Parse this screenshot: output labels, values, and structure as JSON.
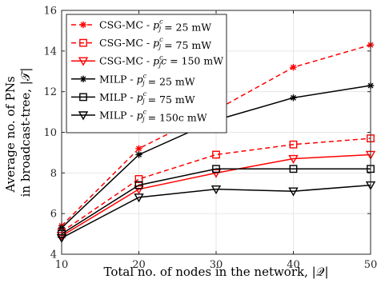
{
  "chart_data": {
    "type": "line",
    "title": "",
    "xlabel": "Total no. of nodes in the network, |𝒬|",
    "ylabel": "Average no. of PNs in broadcast-tree, |𝒯|",
    "ylabel_lines": [
      "Average no. of PNs",
      "in broadcast-tree, |𝒯|"
    ],
    "xlim": [
      10,
      50
    ],
    "ylim": [
      4,
      16
    ],
    "x_ticks": [
      10,
      20,
      30,
      40,
      50
    ],
    "y_ticks": [
      4,
      6,
      8,
      10,
      12,
      14,
      16
    ],
    "grid": true,
    "legend_position": "top-left",
    "x": [
      10,
      20,
      30,
      40,
      50
    ],
    "series": [
      {
        "name": "CSG-MC - p_j^c = 25 mW",
        "label_main": "CSG-MC - ",
        "label_tail": " = 25 mW",
        "label_ptail": "",
        "color": "#ff0000",
        "dash": "dashed",
        "marker": "asterisk",
        "values": [
          5.4,
          9.2,
          11.1,
          13.2,
          14.3
        ]
      },
      {
        "name": "CSG-MC - p_j^c = 75 mW",
        "label_main": "CSG-MC - ",
        "label_tail": " = 75 mW",
        "label_ptail": "",
        "color": "#ff0000",
        "dash": "dashed",
        "marker": "square",
        "values": [
          5.1,
          7.7,
          8.9,
          9.4,
          9.7
        ]
      },
      {
        "name": "CSG-MC - p_j^c c = 150 mW",
        "label_main": "CSG-MC - ",
        "label_tail": " = 150 mW",
        "label_ptail": "c",
        "color": "#ff0000",
        "dash": "solid",
        "marker": "triangle-down",
        "values": [
          4.9,
          7.2,
          8.0,
          8.7,
          8.9
        ]
      },
      {
        "name": "MILP - p_j^c = 25 mW",
        "label_main": "MILP - ",
        "label_tail": " = 25 mW",
        "label_ptail": "",
        "color": "#000000",
        "dash": "solid",
        "marker": "asterisk",
        "values": [
          5.3,
          8.9,
          10.6,
          11.7,
          12.3
        ]
      },
      {
        "name": "MILP - p_j^c = 75 mW",
        "label_main": "MILP - ",
        "label_tail": " = 75 mW",
        "label_ptail": "",
        "color": "#000000",
        "dash": "solid",
        "marker": "square",
        "values": [
          5.0,
          7.4,
          8.2,
          8.2,
          8.2
        ]
      },
      {
        "name": "MILP - p_j^c = 150c mW",
        "label_main": "MILP - ",
        "label_tail": " = 150c mW",
        "label_ptail": "",
        "color": "#000000",
        "dash": "solid",
        "marker": "triangle-down",
        "values": [
          4.8,
          6.8,
          7.2,
          7.1,
          7.4
        ]
      }
    ]
  }
}
